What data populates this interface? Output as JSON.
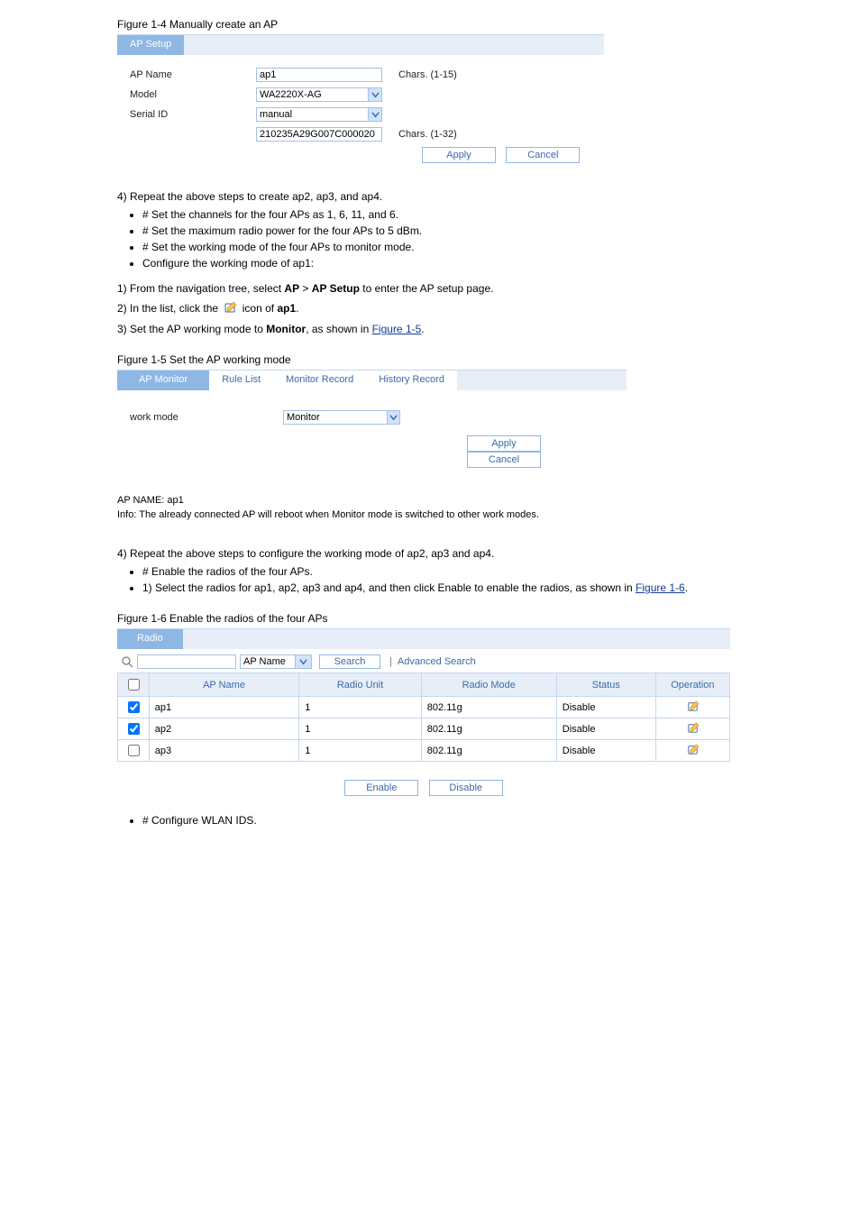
{
  "caption1": "Figure 1-4 Manually create an AP",
  "ap_setup": {
    "tab_active": "AP Setup",
    "rows": {
      "ap_name_label": "AP Name",
      "ap_name_value": "ap1",
      "ap_name_hint": "Chars. (1-15)",
      "model_label": "Model",
      "model_value": "WA2220X-AG",
      "serial_label": "Serial ID",
      "serial_value": "manual",
      "serial_input_value": "210235A29G007C000020",
      "serial_hint": "Chars. (1-32)"
    },
    "apply": "Apply",
    "cancel": "Cancel"
  },
  "step4": "4) Repeat the above steps to create ap2, ap3, and ap4.",
  "list_a": [
    "# Set the channels for the four APs as 1, 6, 11, and 6.",
    "# Set the maximum radio power for the four APs to 5 dBm.",
    "# Set the working mode of the four APs to monitor mode.",
    "Configure the working mode of ap1:"
  ],
  "substeps_a": {
    "line1_pre": "1) From the navigation tree, select ",
    "line1_bold1": "AP",
    "line1_mid": " > ",
    "line1_bold2": "AP Setup",
    "line1_post": " to enter the AP setup page.",
    "line2_pre": "2) In the list, click the ",
    "line2_post": " icon of ",
    "line2_bold": "ap1",
    "line2_tail": ".",
    "line3_pre": "3) Set the AP working mode to ",
    "line3_bold": "Monitor",
    "line3_tail": ", as shown in ",
    "line3_link": "Figure 1-5",
    "line3_end": "."
  },
  "caption2": "Figure 1-5 Set the AP working mode",
  "ap_monitor": {
    "tabs": [
      "AP Monitor",
      "Rule List",
      "Monitor Record",
      "History Record"
    ],
    "work_mode_label": "work mode",
    "work_mode_value": "Monitor",
    "apply": "Apply",
    "cancel": "Cancel",
    "apname_line": "AP NAME: ap1",
    "info_line": "Info: The already connected AP will reboot when Monitor mode is switched to other work modes."
  },
  "list_b": [
    "4) Repeat the above steps to configure the working mode of ap2, ap3 and ap4.",
    "# Enable the radios of the four APs.",
    "1) Select the radios for ap1, ap2, ap3 and ap4, and then click Enable to enable the radios, as shown in "
  ],
  "fig16_link": "Figure 1-6",
  "caption3": "Figure 1-6 Enable the radios of the four APs",
  "radio": {
    "tab": "Radio",
    "search_by_value": "AP Name",
    "search_btn": "Search",
    "advanced": "Advanced Search",
    "cols": [
      "",
      "AP Name",
      "Radio Unit",
      "Radio Mode",
      "Status",
      "Operation"
    ],
    "rows": [
      {
        "checked": true,
        "ap": "ap1",
        "unit": "1",
        "mode": "802.11g",
        "status": "Disable"
      },
      {
        "checked": true,
        "ap": "ap2",
        "unit": "1",
        "mode": "802.11g",
        "status": "Disable"
      },
      {
        "checked": false,
        "ap": "ap3",
        "unit": "1",
        "mode": "802.11g",
        "status": "Disable"
      }
    ],
    "enable": "Enable",
    "disable": "Disable"
  },
  "tail_bullet": "# Configure WLAN IDS."
}
